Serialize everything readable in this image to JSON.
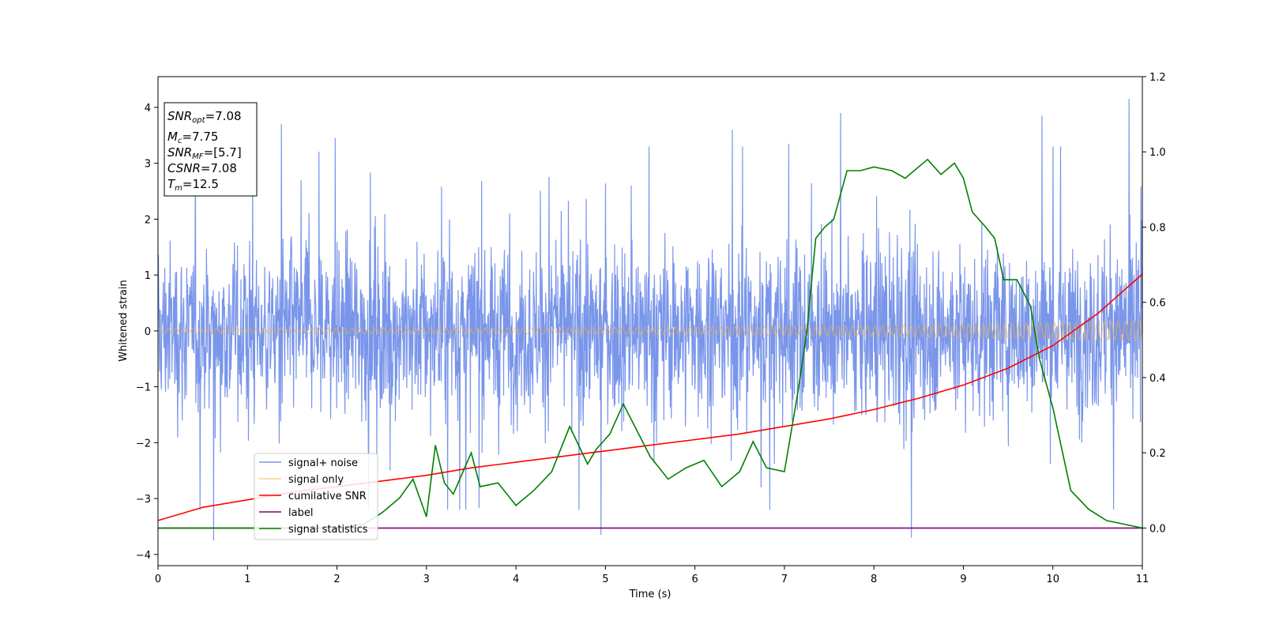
{
  "chart_data": {
    "type": "line",
    "xlabel": "Time (s)",
    "ylabel": "Whitened strain",
    "xlim": [
      0,
      11
    ],
    "ylim": [
      -4.2,
      4.55
    ],
    "y2lim": [
      -0.1,
      1.2
    ],
    "xticks": [
      0,
      1,
      2,
      3,
      4,
      5,
      6,
      7,
      8,
      9,
      10,
      11
    ],
    "xtick_labels": [
      "0",
      "1",
      "2",
      "3",
      "4",
      "5",
      "6",
      "7",
      "8",
      "9",
      "10",
      "11"
    ],
    "yticks": [
      -4,
      -3,
      -2,
      -1,
      0,
      1,
      2,
      3,
      4
    ],
    "ytick_labels": [
      "−4",
      "−3",
      "−2",
      "−1",
      "0",
      "1",
      "2",
      "3",
      "4"
    ],
    "y2ticks": [
      0.0,
      0.2,
      0.4,
      0.6,
      0.8,
      1.0,
      1.2
    ],
    "y2tick_labels": [
      "0.0",
      "0.2",
      "0.4",
      "0.6",
      "0.8",
      "1.0",
      "1.2"
    ],
    "grid": false,
    "legend_position": "lower-left",
    "annotation_box": {
      "position": "top-left",
      "lines": [
        {
          "base": "SNR",
          "sub": "opt",
          "value": "=7.08"
        },
        {
          "base": "M",
          "sub": "c",
          "value": "=7.75"
        },
        {
          "base": "SNR",
          "sub": "MF",
          "value": "=[5.7]"
        },
        {
          "base": "CSNR",
          "sub": "",
          "value": "=7.08"
        },
        {
          "base": "T",
          "sub": "m",
          "value": "=12.5"
        }
      ]
    },
    "series": [
      {
        "name": "signal+ noise",
        "axis": "left",
        "color": "#4169e1",
        "style": "noise",
        "band": [
          -1.5,
          1.5
        ],
        "extremes": [
          {
            "x": 0.62,
            "y": -3.75
          },
          {
            "x": 1.38,
            "y": 3.7
          },
          {
            "x": 1.98,
            "y": 3.45
          },
          {
            "x": 4.95,
            "y": -3.65
          },
          {
            "x": 6.42,
            "y": 3.6
          },
          {
            "x": 7.05,
            "y": 3.35
          },
          {
            "x": 7.63,
            "y": 3.9
          },
          {
            "x": 8.42,
            "y": -3.7
          },
          {
            "x": 9.88,
            "y": 3.85
          },
          {
            "x": 10.85,
            "y": 4.15
          },
          {
            "x": 11.0,
            "y": 1.4
          }
        ]
      },
      {
        "name": "signal only",
        "axis": "left",
        "color": "#f5b041",
        "style": "chirp",
        "amplitude_start": 0.05,
        "amplitude_end": 0.18
      },
      {
        "name": "cumilative SNR",
        "axis": "right",
        "color": "#ff0000",
        "x": [
          0,
          0.5,
          1,
          1.5,
          2,
          2.5,
          3,
          3.5,
          4,
          4.5,
          5,
          5.5,
          6,
          6.5,
          7,
          7.5,
          8,
          8.5,
          9,
          9.5,
          10,
          10.5,
          11
        ],
        "y": [
          0.02,
          0.055,
          0.075,
          0.095,
          0.11,
          0.125,
          0.14,
          0.16,
          0.175,
          0.19,
          0.205,
          0.22,
          0.235,
          0.25,
          0.27,
          0.29,
          0.315,
          0.345,
          0.38,
          0.425,
          0.485,
          0.57,
          0.675
        ]
      },
      {
        "name": "label",
        "axis": "right",
        "color": "#800080",
        "x": [
          0,
          11
        ],
        "y": [
          0.0,
          0.0
        ]
      },
      {
        "name": "signal statistics",
        "axis": "right",
        "color": "#008000",
        "x": [
          0,
          0.5,
          1,
          1.5,
          2,
          2.3,
          2.5,
          2.7,
          2.85,
          3.0,
          3.1,
          3.2,
          3.3,
          3.5,
          3.6,
          3.8,
          4.0,
          4.2,
          4.4,
          4.6,
          4.8,
          4.9,
          5.05,
          5.2,
          5.35,
          5.5,
          5.7,
          5.9,
          6.1,
          6.3,
          6.5,
          6.65,
          6.8,
          7.0,
          7.15,
          7.25,
          7.35,
          7.45,
          7.55,
          7.7,
          7.85,
          8.0,
          8.2,
          8.35,
          8.5,
          8.6,
          8.75,
          8.9,
          9.0,
          9.1,
          9.25,
          9.35,
          9.45,
          9.6,
          9.75,
          9.85,
          10.0,
          10.2,
          10.4,
          10.6,
          10.8,
          11.0
        ],
        "y": [
          0.0,
          0.0,
          0.0,
          0.0,
          0.0,
          0.01,
          0.04,
          0.08,
          0.13,
          0.03,
          0.22,
          0.12,
          0.09,
          0.2,
          0.11,
          0.12,
          0.06,
          0.1,
          0.15,
          0.27,
          0.17,
          0.21,
          0.25,
          0.33,
          0.26,
          0.19,
          0.13,
          0.16,
          0.18,
          0.11,
          0.15,
          0.23,
          0.16,
          0.15,
          0.36,
          0.52,
          0.77,
          0.8,
          0.82,
          0.95,
          0.95,
          0.96,
          0.95,
          0.93,
          0.96,
          0.98,
          0.94,
          0.97,
          0.93,
          0.84,
          0.8,
          0.77,
          0.66,
          0.66,
          0.59,
          0.45,
          0.32,
          0.1,
          0.05,
          0.02,
          0.01,
          0.0
        ]
      }
    ]
  }
}
